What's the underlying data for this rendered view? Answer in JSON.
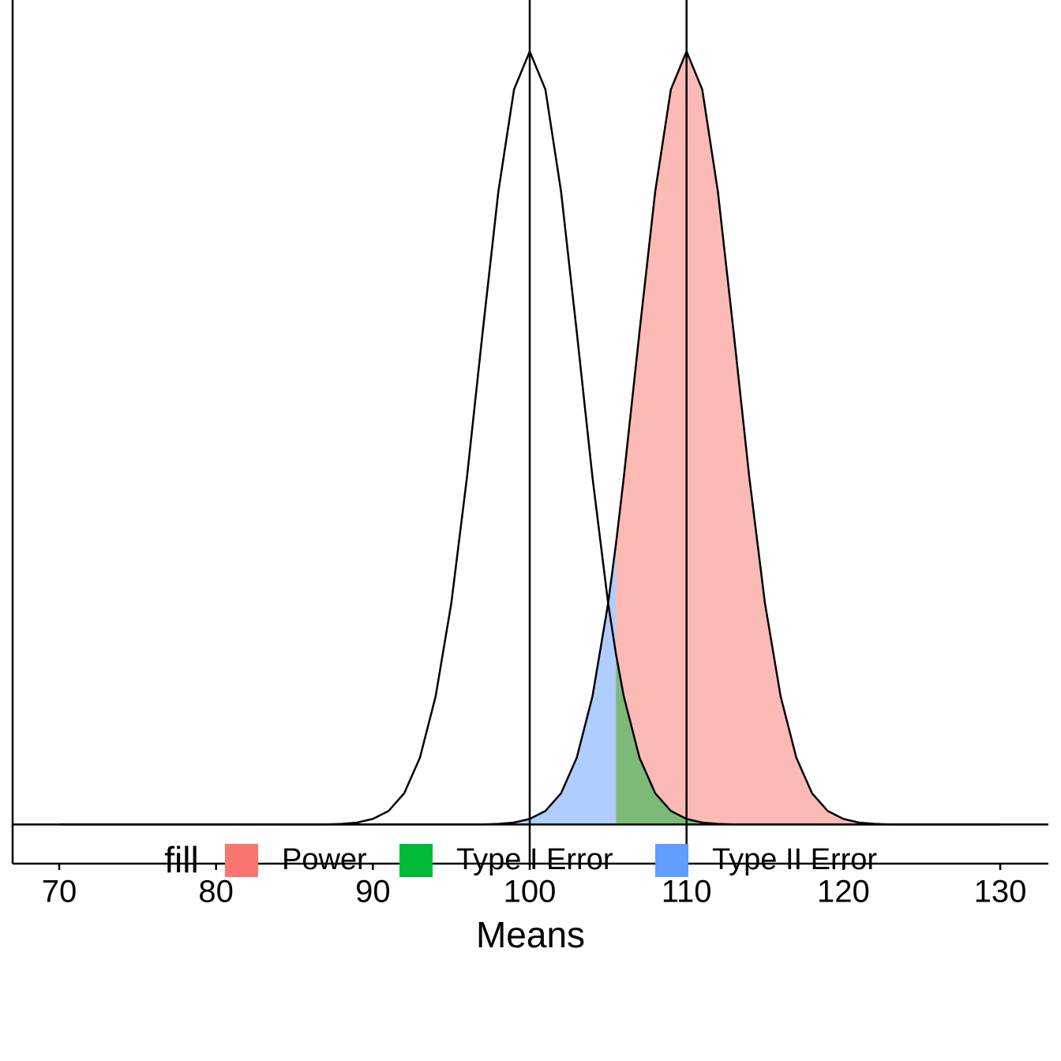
{
  "chart_data": {
    "type": "area",
    "x_label": "Means",
    "legend_title": "fill",
    "x": [
      70,
      71,
      72,
      73,
      74,
      75,
      76,
      77,
      78,
      79,
      80,
      81,
      82,
      83,
      84,
      85,
      86,
      87,
      88,
      89,
      90,
      91,
      92,
      93,
      94,
      95,
      96,
      97,
      98,
      99,
      100,
      101,
      102,
      103,
      104,
      105,
      105.5,
      106,
      107,
      108,
      109,
      110,
      111,
      112,
      113,
      114,
      115,
      116,
      117,
      118,
      119,
      120,
      121,
      122,
      123,
      124,
      125,
      126,
      127,
      128,
      129,
      130
    ],
    "curves": [
      {
        "color": "#000000",
        "values": [
          0,
          0,
          0,
          0,
          0,
          0,
          0,
          0,
          0,
          0,
          0,
          0,
          0,
          0,
          0,
          0,
          0,
          0,
          0.0001,
          0.0003,
          0.0009,
          0.0022,
          0.0051,
          0.0109,
          0.0209,
          0.0361,
          0.0567,
          0.0804,
          0.1033,
          0.12,
          0.1262,
          0.12,
          0.1033,
          0.0804,
          0.0567,
          0.0361,
          0.0278,
          0.0209,
          0.0109,
          0.0051,
          0.0022,
          0.0009,
          0.0003,
          0.0001,
          0,
          0,
          0,
          0,
          0,
          0,
          0,
          0,
          0,
          0,
          0,
          0,
          0,
          0,
          0,
          0,
          0,
          0
        ]
      },
      {
        "color": "#000000",
        "values": [
          0,
          0,
          0,
          0,
          0,
          0,
          0,
          0,
          0,
          0,
          0,
          0,
          0,
          0,
          0,
          0,
          0,
          0,
          0,
          0,
          0,
          0,
          0,
          0,
          0,
          0,
          0,
          0,
          0.0001,
          0.0003,
          0.0009,
          0.0022,
          0.0051,
          0.0109,
          0.0209,
          0.0361,
          0.0458,
          0.0567,
          0.0804,
          0.1033,
          0.12,
          0.1262,
          0.12,
          0.1033,
          0.0804,
          0.0567,
          0.0361,
          0.0209,
          0.0109,
          0.0051,
          0.0022,
          0.0009,
          0.0003,
          0.0001,
          0,
          0,
          0,
          0,
          0,
          0,
          0,
          0
        ]
      }
    ],
    "series": [
      {
        "name": "Power",
        "color": "#F8766D",
        "values": [
          null,
          null,
          null,
          null,
          null,
          null,
          null,
          null,
          null,
          null,
          null,
          null,
          null,
          null,
          null,
          null,
          null,
          null,
          null,
          null,
          null,
          null,
          null,
          null,
          null,
          null,
          null,
          null,
          null,
          null,
          null,
          null,
          null,
          null,
          null,
          null,
          0.0458,
          0.0567,
          0.0804,
          0.1033,
          0.12,
          0.1262,
          0.12,
          0.1033,
          0.0804,
          0.0567,
          0.0361,
          0.0209,
          0.0109,
          0.0051,
          0.0022,
          0.0009,
          0.0003,
          0.0001,
          0,
          0,
          0,
          0,
          0,
          0,
          0,
          0
        ]
      },
      {
        "name": "Type I Error",
        "color": "#00BA38",
        "values": [
          null,
          null,
          null,
          null,
          null,
          null,
          null,
          null,
          null,
          null,
          null,
          null,
          null,
          null,
          null,
          null,
          null,
          null,
          null,
          null,
          null,
          null,
          null,
          null,
          null,
          null,
          null,
          null,
          null,
          null,
          null,
          null,
          null,
          null,
          null,
          null,
          0.0278,
          0.0209,
          0.0109,
          0.0051,
          0.0022,
          0.0009,
          0.0003,
          0.0001,
          0,
          0,
          0,
          0,
          0,
          0,
          0,
          0,
          0,
          0,
          0,
          0,
          0,
          0,
          0,
          0,
          0,
          0
        ]
      },
      {
        "name": "Type II Error",
        "color": "#619CFF",
        "values": [
          0,
          0,
          0,
          0,
          0,
          0,
          0,
          0,
          0,
          0,
          0,
          0,
          0,
          0,
          0,
          0,
          0,
          0,
          0,
          0,
          0,
          0,
          0,
          0,
          0,
          0,
          0,
          0,
          0.0001,
          0.0003,
          0.0009,
          0.0022,
          0.0051,
          0.0109,
          0.0209,
          0.0361,
          0.0458,
          null,
          null,
          null,
          null,
          null,
          null,
          null,
          null,
          null,
          null,
          null,
          null,
          null,
          null,
          null,
          null,
          null,
          null,
          null,
          null,
          null,
          null,
          null,
          null,
          null
        ]
      }
    ],
    "alpha": 0.5,
    "vlines": [
      100,
      110
    ],
    "hline": 0,
    "xlim": [
      67.03,
      133.07
    ],
    "ylim": [
      -0.0064,
      0.1346
    ],
    "xticks": [
      70,
      80,
      90,
      100,
      110,
      120,
      130
    ]
  }
}
